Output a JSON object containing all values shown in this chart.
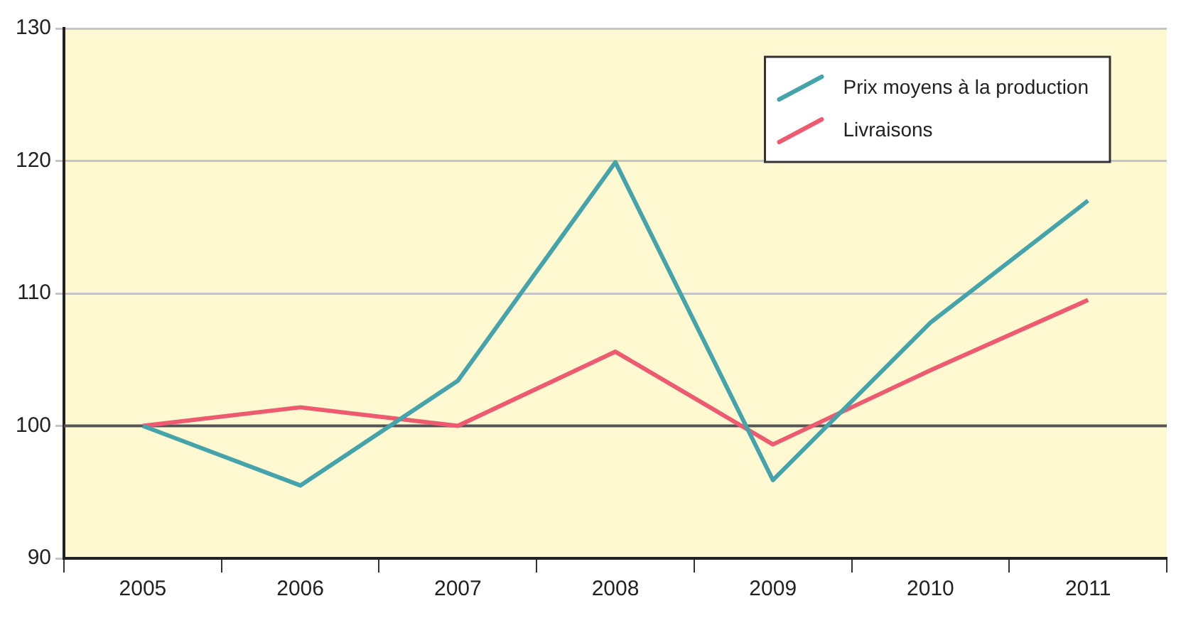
{
  "chart_data": {
    "type": "line",
    "categories": [
      "2005",
      "2006",
      "2007",
      "2008",
      "2009",
      "2010",
      "2011"
    ],
    "series": [
      {
        "name": "Prix moyens à la production",
        "color": "#45a3ac",
        "values": [
          100,
          95.5,
          103.4,
          119.9,
          95.9,
          107.8,
          117
        ]
      },
      {
        "name": "Livraisons",
        "color": "#ee5a70",
        "values": [
          100,
          101.4,
          100,
          105.6,
          98.6,
          104.2,
          109.5
        ]
      }
    ],
    "ylim": [
      90,
      130
    ],
    "yticks": [
      90,
      100,
      110,
      120,
      130
    ],
    "grid": "y",
    "legend": "top right",
    "marker": "none",
    "line_style": "solid",
    "ref_lines": [
      {
        "axis": "y",
        "value": 100,
        "color": "#555555"
      }
    ]
  }
}
